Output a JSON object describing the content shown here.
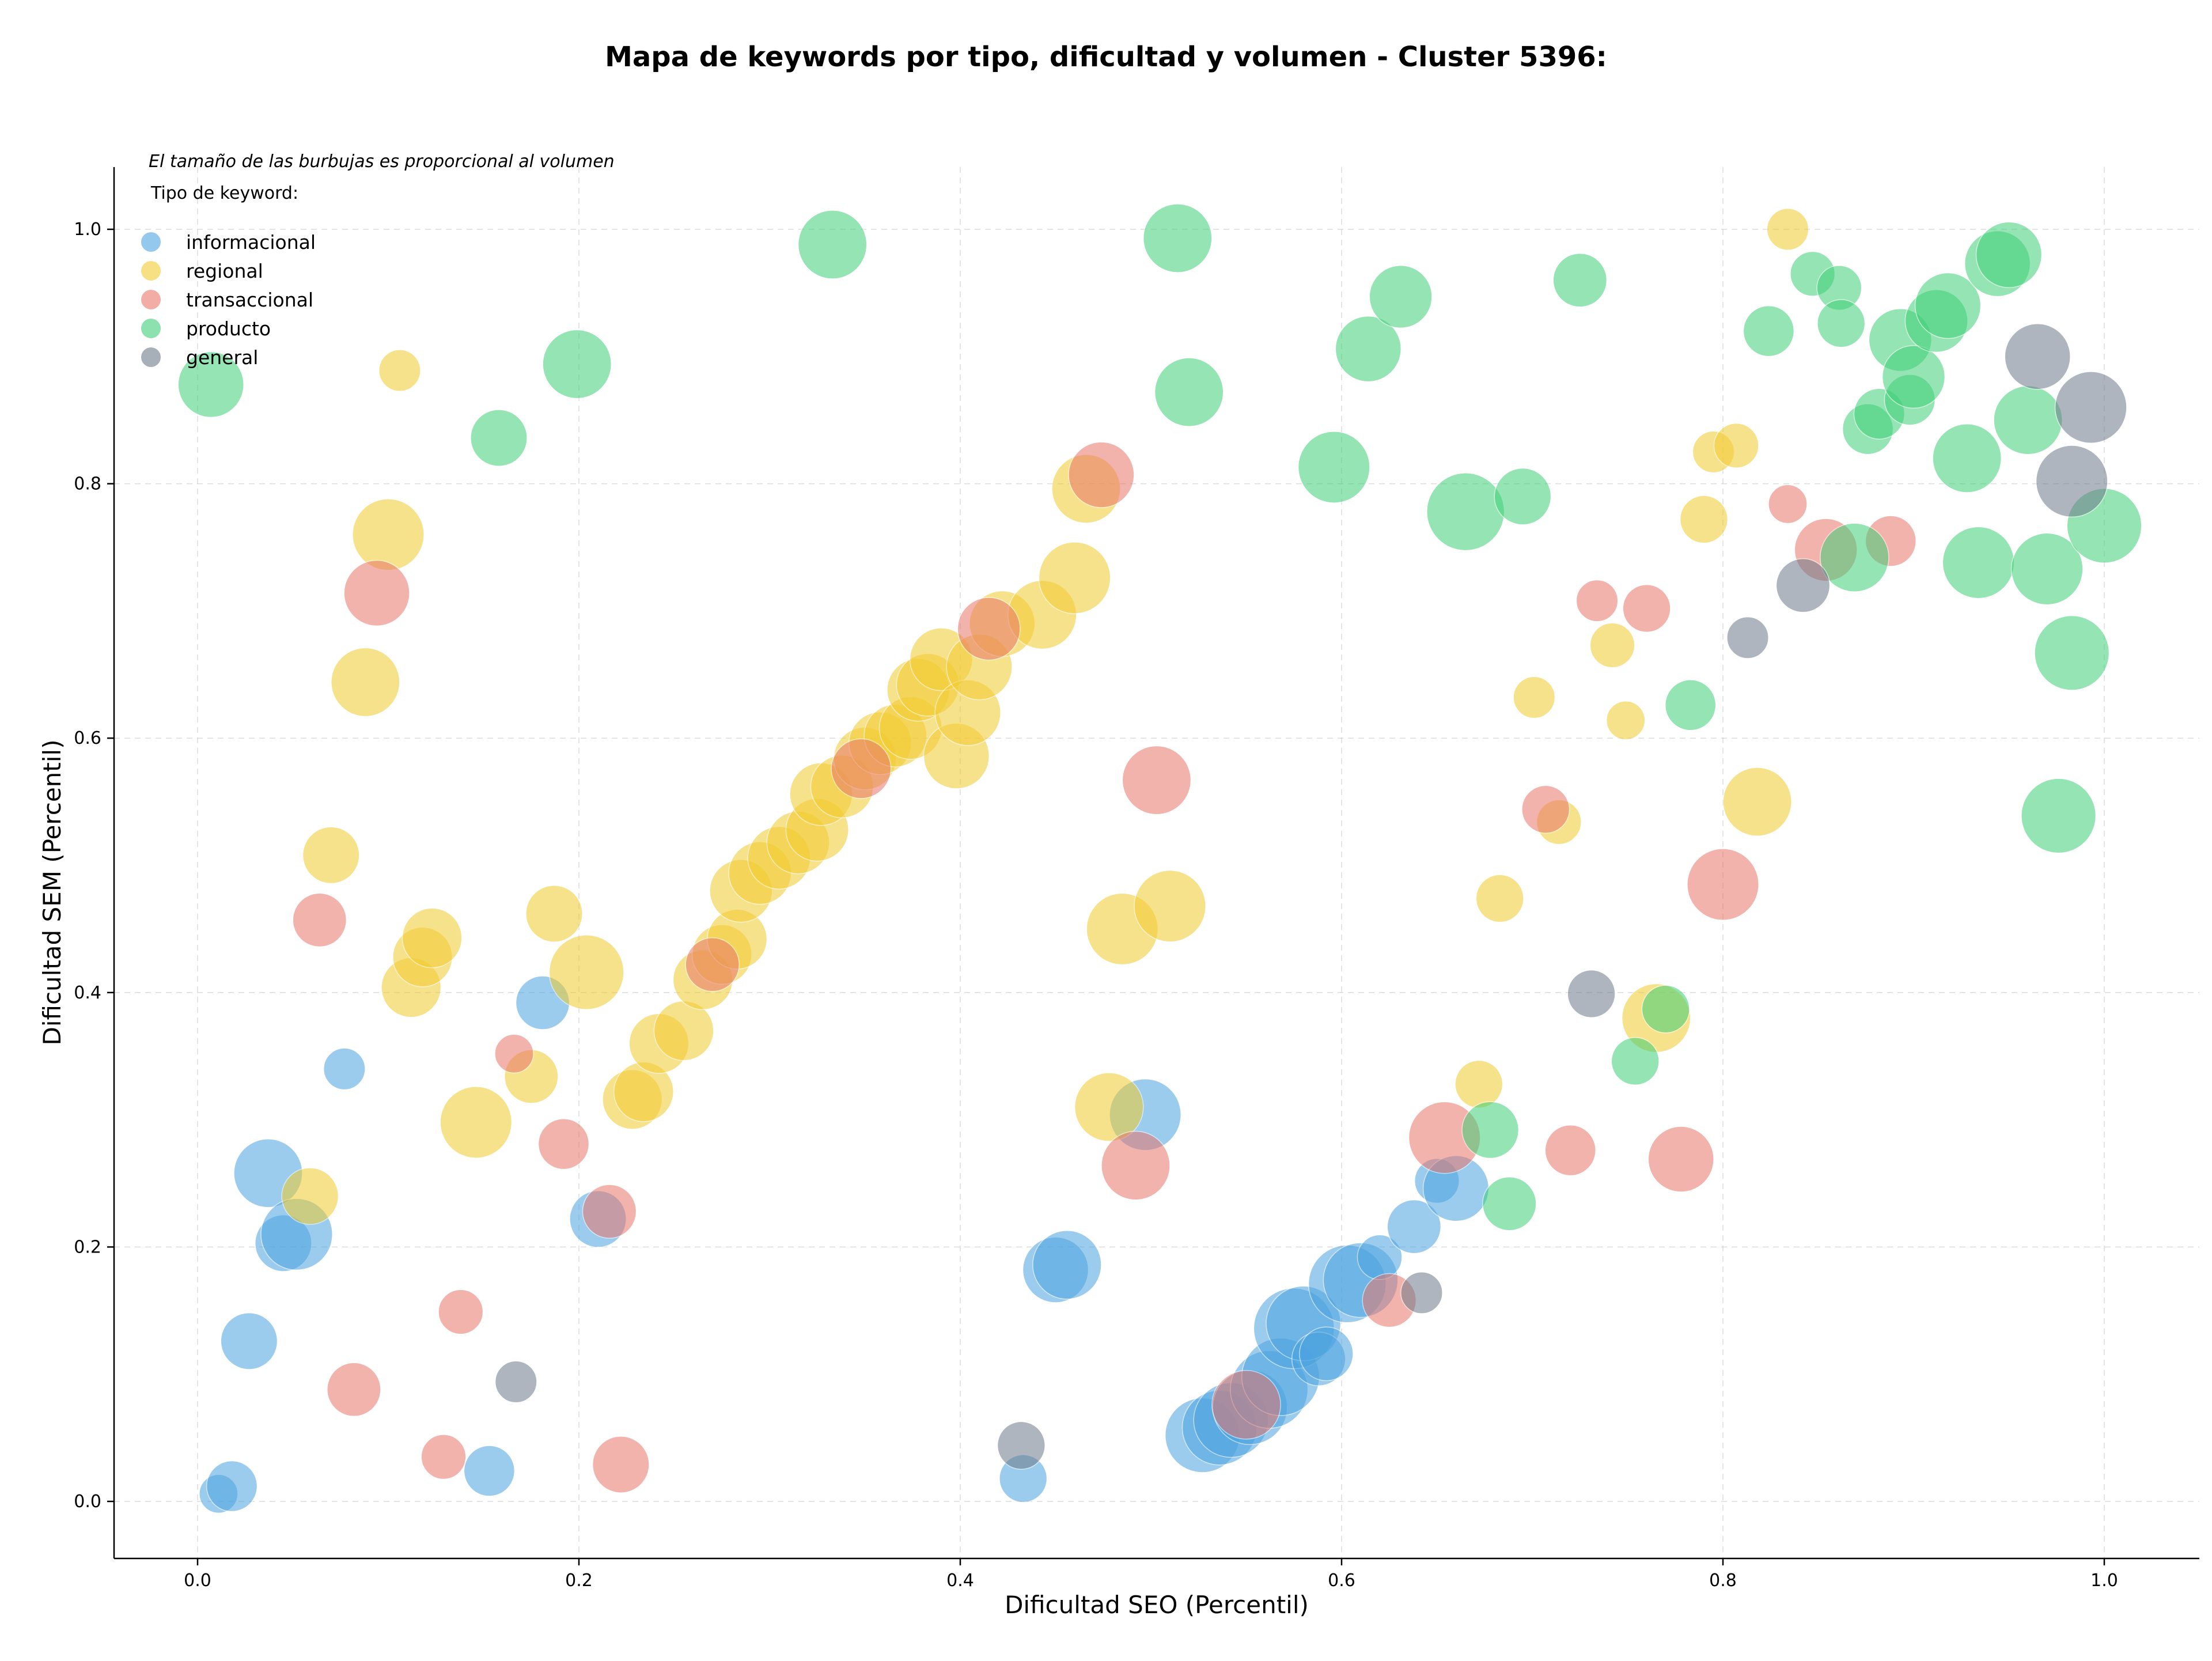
{
  "chart_data": {
    "type": "scatter",
    "title": "Mapa de keywords por tipo, dificultad y volumen - Cluster 5396:",
    "xlabel": "Dificultad SEO (Percentil)",
    "ylabel": "Dificultad SEM (Percentil)",
    "annotation": "El tamaño de las burbujas es proporcional al volumen",
    "legend_title": "Tipo de keyword:",
    "legend_position": "top-left",
    "grid": true,
    "xlim": [
      -0.043,
      1.05
    ],
    "ylim": [
      -0.043,
      1.05
    ],
    "x_ticks": [
      "0.0",
      "0.2",
      "0.4",
      "0.6",
      "0.8",
      "1.0"
    ],
    "y_ticks": [
      "0.0",
      "0.2",
      "0.4",
      "0.6",
      "0.8",
      "1.0"
    ],
    "x_tick_values": [
      0,
      0.2,
      0.4,
      0.6,
      0.8,
      1.0
    ],
    "y_tick_values": [
      0,
      0.2,
      0.4,
      0.6,
      0.8,
      1.0
    ],
    "series": [
      {
        "name": "informacional",
        "color": "#4ca3e0",
        "points": [
          [
            0.011,
            0.006,
            0.3
          ],
          [
            0.018,
            0.012,
            0.5
          ],
          [
            0.027,
            0.126,
            0.6
          ],
          [
            0.037,
            0.258,
            0.8
          ],
          [
            0.045,
            0.203,
            0.6
          ],
          [
            0.052,
            0.21,
            0.85
          ],
          [
            0.077,
            0.34,
            0.35
          ],
          [
            0.153,
            0.024,
            0.5
          ],
          [
            0.181,
            0.392,
            0.55
          ],
          [
            0.21,
            0.222,
            0.6
          ],
          [
            0.433,
            0.018,
            0.45
          ],
          [
            0.45,
            0.182,
            0.75
          ],
          [
            0.456,
            0.186,
            0.8
          ],
          [
            0.497,
            0.304,
            0.85
          ],
          [
            0.527,
            0.052,
            0.9
          ],
          [
            0.536,
            0.058,
            0.9
          ],
          [
            0.542,
            0.064,
            0.9
          ],
          [
            0.552,
            0.074,
            0.9
          ],
          [
            0.562,
            0.088,
            0.95
          ],
          [
            0.568,
            0.098,
            0.95
          ],
          [
            0.575,
            0.136,
            1.0
          ],
          [
            0.58,
            0.14,
            0.9
          ],
          [
            0.588,
            0.112,
            0.55
          ],
          [
            0.592,
            0.116,
            0.55
          ],
          [
            0.603,
            0.171,
            0.95
          ],
          [
            0.61,
            0.174,
            0.9
          ],
          [
            0.62,
            0.192,
            0.4
          ],
          [
            0.638,
            0.216,
            0.55
          ],
          [
            0.65,
            0.252,
            0.4
          ],
          [
            0.66,
            0.246,
            0.75
          ]
        ]
      },
      {
        "name": "regional",
        "color": "#f2cc30",
        "points": [
          [
            0.059,
            0.24,
            0.6
          ],
          [
            0.07,
            0.508,
            0.6
          ],
          [
            0.088,
            0.644,
            0.8
          ],
          [
            0.1,
            0.76,
            0.85
          ],
          [
            0.106,
            0.889,
            0.35
          ],
          [
            0.112,
            0.404,
            0.65
          ],
          [
            0.118,
            0.428,
            0.65
          ],
          [
            0.123,
            0.443,
            0.65
          ],
          [
            0.146,
            0.298,
            0.85
          ],
          [
            0.175,
            0.334,
            0.55
          ],
          [
            0.187,
            0.462,
            0.6
          ],
          [
            0.204,
            0.416,
            0.9
          ],
          [
            0.228,
            0.316,
            0.65
          ],
          [
            0.234,
            0.322,
            0.65
          ],
          [
            0.242,
            0.36,
            0.65
          ],
          [
            0.255,
            0.37,
            0.65
          ],
          [
            0.265,
            0.41,
            0.65
          ],
          [
            0.275,
            0.43,
            0.65
          ],
          [
            0.283,
            0.442,
            0.65
          ],
          [
            0.285,
            0.48,
            0.7
          ],
          [
            0.295,
            0.494,
            0.7
          ],
          [
            0.305,
            0.506,
            0.7
          ],
          [
            0.315,
            0.518,
            0.7
          ],
          [
            0.325,
            0.528,
            0.7
          ],
          [
            0.327,
            0.556,
            0.7
          ],
          [
            0.338,
            0.562,
            0.7
          ],
          [
            0.35,
            0.584,
            0.7
          ],
          [
            0.358,
            0.596,
            0.7
          ],
          [
            0.366,
            0.602,
            0.7
          ],
          [
            0.374,
            0.608,
            0.7
          ],
          [
            0.378,
            0.638,
            0.7
          ],
          [
            0.383,
            0.642,
            0.7
          ],
          [
            0.39,
            0.662,
            0.7
          ],
          [
            0.398,
            0.586,
            0.75
          ],
          [
            0.404,
            0.62,
            0.75
          ],
          [
            0.41,
            0.656,
            0.75
          ],
          [
            0.422,
            0.69,
            0.75
          ],
          [
            0.443,
            0.697,
            0.8
          ],
          [
            0.46,
            0.726,
            0.85
          ],
          [
            0.466,
            0.796,
            0.8
          ],
          [
            0.478,
            0.31,
            0.8
          ],
          [
            0.485,
            0.45,
            0.85
          ],
          [
            0.51,
            0.468,
            0.85
          ],
          [
            0.672,
            0.328,
            0.45
          ],
          [
            0.683,
            0.474,
            0.45
          ],
          [
            0.701,
            0.632,
            0.35
          ],
          [
            0.714,
            0.534,
            0.4
          ],
          [
            0.742,
            0.673,
            0.4
          ],
          [
            0.749,
            0.614,
            0.3
          ],
          [
            0.765,
            0.38,
            0.8
          ],
          [
            0.79,
            0.772,
            0.45
          ],
          [
            0.795,
            0.825,
            0.35
          ],
          [
            0.807,
            0.83,
            0.4
          ],
          [
            0.818,
            0.55,
            0.8
          ],
          [
            0.834,
            1.0,
            0.35
          ]
        ]
      },
      {
        "name": "transaccional",
        "color": "#e8766b",
        "points": [
          [
            0.064,
            0.457,
            0.55
          ],
          [
            0.082,
            0.088,
            0.55
          ],
          [
            0.094,
            0.714,
            0.75
          ],
          [
            0.129,
            0.035,
            0.4
          ],
          [
            0.138,
            0.149,
            0.4
          ],
          [
            0.166,
            0.352,
            0.3
          ],
          [
            0.192,
            0.281,
            0.5
          ],
          [
            0.216,
            0.228,
            0.55
          ],
          [
            0.222,
            0.029,
            0.6
          ],
          [
            0.27,
            0.422,
            0.55
          ],
          [
            0.348,
            0.576,
            0.65
          ],
          [
            0.415,
            0.686,
            0.7
          ],
          [
            0.474,
            0.807,
            0.75
          ],
          [
            0.492,
            0.264,
            0.8
          ],
          [
            0.503,
            0.567,
            0.8
          ],
          [
            0.55,
            0.076,
            0.8
          ],
          [
            0.625,
            0.158,
            0.55
          ],
          [
            0.654,
            0.286,
            0.85
          ],
          [
            0.707,
            0.544,
            0.45
          ],
          [
            0.72,
            0.276,
            0.5
          ],
          [
            0.734,
            0.708,
            0.35
          ],
          [
            0.76,
            0.702,
            0.45
          ],
          [
            0.778,
            0.269,
            0.75
          ],
          [
            0.8,
            0.485,
            0.85
          ],
          [
            0.834,
            0.784,
            0.3
          ],
          [
            0.854,
            0.748,
            0.7
          ],
          [
            0.888,
            0.755,
            0.5
          ]
        ]
      },
      {
        "name": "producto",
        "color": "#3fcf78",
        "points": [
          [
            0.007,
            0.878,
            0.75
          ],
          [
            0.158,
            0.836,
            0.6
          ],
          [
            0.199,
            0.894,
            0.8
          ],
          [
            0.333,
            0.988,
            0.8
          ],
          [
            0.514,
            0.993,
            0.8
          ],
          [
            0.52,
            0.872,
            0.8
          ],
          [
            0.596,
            0.813,
            0.85
          ],
          [
            0.614,
            0.906,
            0.75
          ],
          [
            0.631,
            0.947,
            0.7
          ],
          [
            0.665,
            0.778,
            0.95
          ],
          [
            0.678,
            0.292,
            0.6
          ],
          [
            0.688,
            0.234,
            0.55
          ],
          [
            0.695,
            0.79,
            0.6
          ],
          [
            0.725,
            0.96,
            0.55
          ],
          [
            0.754,
            0.346,
            0.45
          ],
          [
            0.77,
            0.387,
            0.45
          ],
          [
            0.783,
            0.626,
            0.5
          ],
          [
            0.824,
            0.92,
            0.5
          ],
          [
            0.847,
            0.965,
            0.4
          ],
          [
            0.861,
            0.954,
            0.4
          ],
          [
            0.862,
            0.926,
            0.45
          ],
          [
            0.869,
            0.742,
            0.8
          ],
          [
            0.876,
            0.843,
            0.5
          ],
          [
            0.882,
            0.855,
            0.5
          ],
          [
            0.893,
            0.913,
            0.7
          ],
          [
            0.898,
            0.866,
            0.5
          ],
          [
            0.9,
            0.884,
            0.7
          ],
          [
            0.912,
            0.928,
            0.7
          ],
          [
            0.918,
            0.94,
            0.75
          ],
          [
            0.928,
            0.82,
            0.8
          ],
          [
            0.934,
            0.738,
            0.85
          ],
          [
            0.944,
            0.973,
            0.75
          ],
          [
            0.95,
            0.98,
            0.75
          ],
          [
            0.96,
            0.85,
            0.8
          ],
          [
            0.97,
            0.733,
            0.85
          ],
          [
            0.976,
            0.539,
            0.9
          ],
          [
            0.983,
            0.667,
            0.9
          ],
          [
            1.0,
            0.767,
            0.9
          ]
        ]
      },
      {
        "name": "general",
        "color": "#6c7a89",
        "points": [
          [
            0.167,
            0.094,
            0.35
          ],
          [
            0.432,
            0.044,
            0.45
          ],
          [
            0.642,
            0.164,
            0.35
          ],
          [
            0.731,
            0.399,
            0.45
          ],
          [
            0.813,
            0.679,
            0.35
          ],
          [
            0.842,
            0.72,
            0.55
          ],
          [
            0.965,
            0.9,
            0.75
          ],
          [
            0.983,
            0.802,
            0.85
          ],
          [
            0.993,
            0.86,
            0.85
          ]
        ]
      }
    ]
  }
}
